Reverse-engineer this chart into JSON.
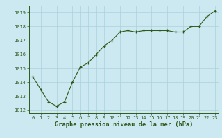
{
  "x": [
    0,
    1,
    2,
    3,
    4,
    5,
    6,
    7,
    8,
    9,
    10,
    11,
    12,
    13,
    14,
    15,
    16,
    17,
    18,
    19,
    20,
    21,
    22,
    23
  ],
  "y": [
    1014.4,
    1013.5,
    1012.6,
    1012.3,
    1012.6,
    1014.0,
    1015.1,
    1015.4,
    1016.0,
    1016.6,
    1017.0,
    1017.6,
    1017.7,
    1017.6,
    1017.7,
    1017.7,
    1017.7,
    1017.7,
    1017.6,
    1017.6,
    1018.0,
    1018.0,
    1018.7,
    1019.1
  ],
  "line_color": "#2d5a1b",
  "marker_color": "#2d5a1b",
  "bg_color": "#cce8f0",
  "grid_color": "#aad0dc",
  "xlabel": "Graphe pression niveau de la mer (hPa)",
  "xlabel_color": "#2d5a1b",
  "tick_color": "#2d5a1b",
  "spine_color": "#2d5a1b",
  "ylim": [
    1011.8,
    1019.5
  ],
  "yticks": [
    1012,
    1013,
    1014,
    1015,
    1016,
    1017,
    1018,
    1019
  ],
  "xticks": [
    0,
    1,
    2,
    3,
    4,
    5,
    6,
    7,
    8,
    9,
    10,
    11,
    12,
    13,
    14,
    15,
    16,
    17,
    18,
    19,
    20,
    21,
    22,
    23
  ],
  "xlim": [
    -0.5,
    23.5
  ]
}
